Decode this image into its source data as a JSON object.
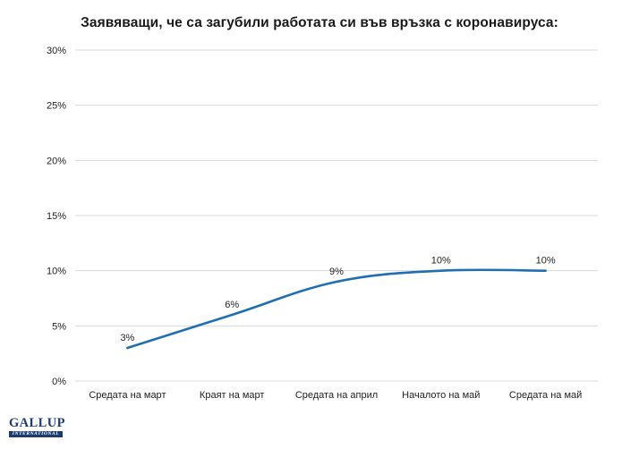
{
  "chart_data": {
    "type": "line",
    "title": "Заявяващи, че са загубили работата си във връзка с коронавируса:",
    "categories": [
      "Средата на март",
      "Краят на март",
      "Средата на април",
      "Началото на май",
      "Средата на май"
    ],
    "series": [
      {
        "values": [
          3,
          6,
          9,
          10,
          10
        ],
        "data_labels": [
          "3%",
          "6%",
          "9%",
          "10%",
          "10%"
        ],
        "color": "#1f6fb2"
      }
    ],
    "ylim": [
      0,
      30
    ],
    "y_ticks": [
      0,
      5,
      10,
      15,
      20,
      25,
      30
    ],
    "y_tick_labels": [
      "0%",
      "5%",
      "10%",
      "15%",
      "20%",
      "25%",
      "30%"
    ],
    "grid": true,
    "gridline_color": "#d9d9d9"
  },
  "logo": {
    "top_text": "GALLUP",
    "bottom_text": "INTERNATIONAL",
    "color": "#1f3a73"
  }
}
